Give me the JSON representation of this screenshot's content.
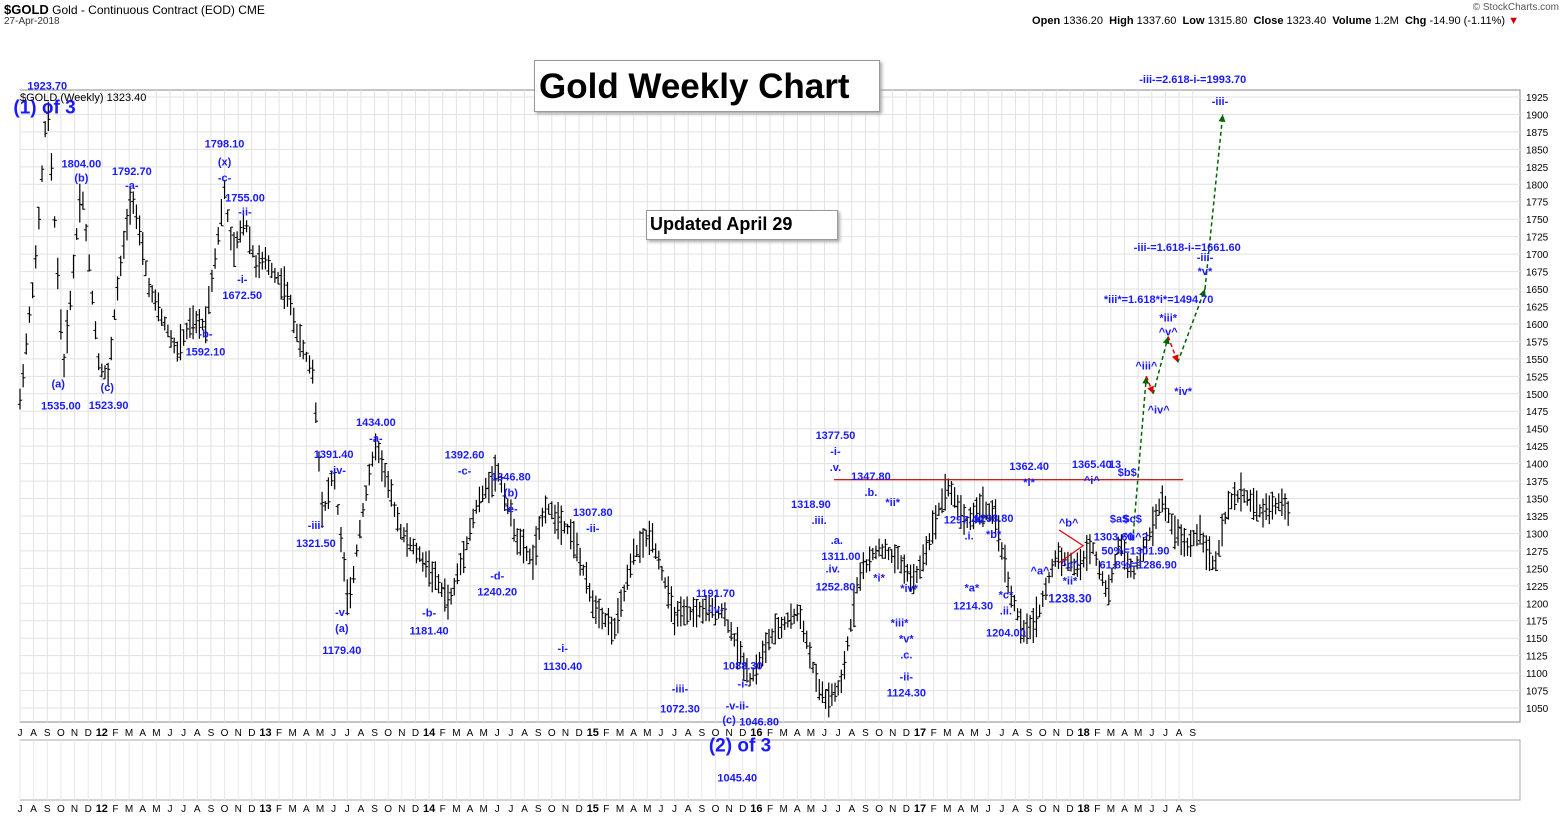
{
  "header": {
    "symbol": "$GOLD",
    "description": "Gold - Continuous Contract (EOD)",
    "exchange": "CME",
    "date": "27-Apr-2018",
    "brand": "© StockCharts.com",
    "open_label": "Open",
    "open": "1336.20",
    "high_label": "High",
    "high": "1337.60",
    "low_label": "Low",
    "low": "1315.80",
    "close_label": "Close",
    "close": "1323.40",
    "volume_label": "Volume",
    "volume": "1.2M",
    "chg_label": "Chg",
    "chg": "-14.90 (-1.11%)",
    "chg_arrow": "▼"
  },
  "title": "Gold Weekly Chart",
  "updated": "Updated April 29",
  "legend": "$GOLD (Weekly) 1323.40",
  "chart_data": {
    "type": "ohlc-weekly",
    "ylim": [
      1030,
      1935
    ],
    "y_ticks": [
      1050,
      1075,
      1100,
      1125,
      1150,
      1175,
      1200,
      1225,
      1250,
      1275,
      1300,
      1325,
      1350,
      1375,
      1400,
      1425,
      1450,
      1475,
      1500,
      1525,
      1550,
      1575,
      1600,
      1625,
      1650,
      1675,
      1700,
      1725,
      1750,
      1775,
      1800,
      1825,
      1850,
      1875,
      1900,
      1925
    ],
    "x_start": "2011-07",
    "x_months": 110,
    "month_labels": [
      "J",
      "A",
      "S",
      "O",
      "N",
      "D",
      "12",
      "F",
      "M",
      "A",
      "M",
      "J",
      "J",
      "A",
      "S",
      "O",
      "N",
      "D",
      "13",
      "F",
      "M",
      "A",
      "M",
      "J",
      "J",
      "A",
      "S",
      "O",
      "N",
      "D",
      "14",
      "F",
      "M",
      "A",
      "M",
      "J",
      "J",
      "A",
      "S",
      "O",
      "N",
      "D",
      "15",
      "F",
      "M",
      "A",
      "M",
      "J",
      "J",
      "A",
      "S",
      "O",
      "N",
      "D",
      "16",
      "F",
      "M",
      "A",
      "M",
      "J",
      "J",
      "A",
      "S",
      "O",
      "N",
      "D",
      "17",
      "F",
      "M",
      "A",
      "M",
      "J",
      "J",
      "A",
      "S",
      "O",
      "N",
      "D",
      "18",
      "F",
      "M",
      "A",
      "M",
      "J",
      "J",
      "A",
      "S"
    ],
    "anchors": [
      [
        0,
        1490
      ],
      [
        1.2,
        1700
      ],
      [
        2.0,
        1920
      ],
      [
        3.2,
        1535
      ],
      [
        4.5,
        1800
      ],
      [
        5.8,
        1540
      ],
      [
        6.5,
        1525
      ],
      [
        7.0,
        1630
      ],
      [
        8.2,
        1790
      ],
      [
        9.5,
        1650
      ],
      [
        11.5,
        1560
      ],
      [
        12.5,
        1600
      ],
      [
        13.6,
        1600
      ],
      [
        15.0,
        1790
      ],
      [
        15.6,
        1700
      ],
      [
        16.5,
        1750
      ],
      [
        17.3,
        1685
      ],
      [
        18.0,
        1690
      ],
      [
        19.5,
        1650
      ],
      [
        20.5,
        1575
      ],
      [
        21.5,
        1530
      ],
      [
        22.2,
        1325
      ],
      [
        23.0,
        1390
      ],
      [
        24.1,
        1190
      ],
      [
        25.0,
        1320
      ],
      [
        26.1,
        1430
      ],
      [
        28.0,
        1300
      ],
      [
        30.0,
        1250
      ],
      [
        31.5,
        1200
      ],
      [
        33.5,
        1340
      ],
      [
        35.0,
        1392
      ],
      [
        36.5,
        1290
      ],
      [
        37.6,
        1260
      ],
      [
        38.5,
        1340
      ],
      [
        40.5,
        1300
      ],
      [
        42.0,
        1200
      ],
      [
        43.6,
        1160
      ],
      [
        45.0,
        1270
      ],
      [
        46.3,
        1300
      ],
      [
        48.0,
        1180
      ],
      [
        50.0,
        1190
      ],
      [
        51.5,
        1190
      ],
      [
        53.6,
        1090
      ],
      [
        55.0,
        1150
      ],
      [
        56.5,
        1180
      ],
      [
        57.2,
        1185
      ],
      [
        58.5,
        1080
      ],
      [
        59.2,
        1060
      ],
      [
        60.2,
        1080
      ],
      [
        61.5,
        1240
      ],
      [
        63.0,
        1280
      ],
      [
        64.5,
        1260
      ],
      [
        65.6,
        1230
      ],
      [
        66.6,
        1285
      ],
      [
        67.3,
        1330
      ],
      [
        68.0,
        1370
      ],
      [
        69.4,
        1315
      ],
      [
        70.5,
        1340
      ],
      [
        71.6,
        1320
      ],
      [
        72.5,
        1225
      ],
      [
        73.6,
        1155
      ],
      [
        74.6,
        1180
      ],
      [
        76.0,
        1270
      ],
      [
        77.6,
        1250
      ],
      [
        78.6,
        1285
      ],
      [
        79.8,
        1210
      ],
      [
        80.6,
        1290
      ],
      [
        81.6,
        1240
      ],
      [
        83.0,
        1305
      ],
      [
        83.7,
        1350
      ],
      [
        84.5,
        1310
      ],
      [
        85.6,
        1280
      ],
      [
        86.5,
        1305
      ],
      [
        87.6,
        1250
      ],
      [
        88.6,
        1340
      ],
      [
        89.6,
        1360
      ],
      [
        91.0,
        1330
      ],
      [
        92.4,
        1345
      ],
      [
        93.2,
        1323
      ]
    ],
    "annotations": [
      {
        "text": "1923.70",
        "x": 2.0,
        "y": 1930,
        "dy": -4,
        "bold": true
      },
      {
        "text": "(1) of 3",
        "x": 1.8,
        "y": 1930,
        "dy": 20,
        "size": 19
      },
      {
        "text": "1804.00",
        "x": 4.5,
        "y": 1804,
        "dy": -14
      },
      {
        "text": "(b)",
        "x": 4.5,
        "y": 1804,
        "dy": 0
      },
      {
        "text": "(a)",
        "x": 2.8,
        "y": 1535,
        "dy": 18
      },
      {
        "text": "1535.00",
        "x": 3.0,
        "y": 1535,
        "dy": 40
      },
      {
        "text": "(c)",
        "x": 6.4,
        "y": 1524,
        "dy": 14
      },
      {
        "text": "1523.90",
        "x": 6.5,
        "y": 1524,
        "dy": 32
      },
      {
        "text": "1792.70",
        "x": 8.2,
        "y": 1793,
        "dy": -14
      },
      {
        "text": "-a-",
        "x": 8.2,
        "y": 1793,
        "dy": 0
      },
      {
        "text": "1798.10",
        "x": 15.0,
        "y": 1798,
        "dy": -38
      },
      {
        "text": "(x)",
        "x": 15.0,
        "y": 1798,
        "dy": -20
      },
      {
        "text": "-c-",
        "x": 15.0,
        "y": 1798,
        "dy": -4
      },
      {
        "text": "1755.00",
        "x": 16.5,
        "y": 1755,
        "dy": -14
      },
      {
        "text": "-ii-",
        "x": 16.5,
        "y": 1755,
        "dy": 0
      },
      {
        "text": "-b-",
        "x": 13.6,
        "y": 1592,
        "dy": 8
      },
      {
        "text": "1592.10",
        "x": 13.6,
        "y": 1592,
        "dy": 26
      },
      {
        "text": "-i-",
        "x": 16.3,
        "y": 1673,
        "dy": 10
      },
      {
        "text": "1672.50",
        "x": 16.3,
        "y": 1673,
        "dy": 26
      },
      {
        "text": "1391.40",
        "x": 23.0,
        "y": 1391,
        "dy": -12
      },
      {
        "text": "-iv-",
        "x": 23.3,
        "y": 1391,
        "dy": 4
      },
      {
        "text": "-iii-",
        "x": 21.7,
        "y": 1321,
        "dy": 10
      },
      {
        "text": "1321.50",
        "x": 21.7,
        "y": 1321,
        "dy": 28
      },
      {
        "text": "1434.00",
        "x": 26.1,
        "y": 1434,
        "dy": -14
      },
      {
        "text": "-a-",
        "x": 26.1,
        "y": 1434,
        "dy": 2
      },
      {
        "text": "-v-",
        "x": 23.6,
        "y": 1179,
        "dy": -2
      },
      {
        "text": "(a)",
        "x": 23.6,
        "y": 1179,
        "dy": 14
      },
      {
        "text": "1179.40",
        "x": 23.6,
        "y": 1179,
        "dy": 36
      },
      {
        "text": "1392.60",
        "x": 32.6,
        "y": 1393,
        "dy": -10
      },
      {
        "text": "-c-",
        "x": 32.6,
        "y": 1393,
        "dy": 6
      },
      {
        "text": "1346.80",
        "x": 36.0,
        "y": 1347,
        "dy": -20
      },
      {
        "text": "(b)",
        "x": 36.0,
        "y": 1347,
        "dy": -4
      },
      {
        "text": "-e-",
        "x": 36.0,
        "y": 1347,
        "dy": 12
      },
      {
        "text": "-d-",
        "x": 35.0,
        "y": 1240,
        "dy": 4
      },
      {
        "text": "1240.20",
        "x": 35.0,
        "y": 1240,
        "dy": 20
      },
      {
        "text": "-b-",
        "x": 30.0,
        "y": 1181,
        "dy": 0
      },
      {
        "text": "1181.40",
        "x": 30.0,
        "y": 1181,
        "dy": 18
      },
      {
        "text": "1307.80",
        "x": 42.0,
        "y": 1308,
        "dy": -12
      },
      {
        "text": "-ii-",
        "x": 42.0,
        "y": 1308,
        "dy": 4
      },
      {
        "text": "-i-",
        "x": 39.8,
        "y": 1130,
        "dy": 0
      },
      {
        "text": "1130.40",
        "x": 39.8,
        "y": 1130,
        "dy": 18
      },
      {
        "text": "1191.70",
        "x": 51.0,
        "y": 1192,
        "dy": -12
      },
      {
        "text": "-iv-",
        "x": 51.0,
        "y": 1192,
        "dy": 4
      },
      {
        "text": "-iii-",
        "x": 48.4,
        "y": 1072,
        "dy": 0
      },
      {
        "text": "1072.30",
        "x": 48.4,
        "y": 1072,
        "dy": 20
      },
      {
        "text": "1088.30",
        "x": 53.0,
        "y": 1088,
        "dy": -12
      },
      {
        "text": "-i-",
        "x": 53.0,
        "y": 1088,
        "dy": 6
      },
      {
        "text": "-v-ii-",
        "x": 52.6,
        "y": 1048,
        "dy": 0
      },
      {
        "text": "(c)",
        "x": 52.0,
        "y": 1048,
        "dy": 14
      },
      {
        "text": "1046.80",
        "x": 54.2,
        "y": 1048,
        "dy": 16
      },
      {
        "text": "(2) of 3",
        "x": 52.8,
        "y": 1048,
        "dy": 42,
        "size": 19
      },
      {
        "text": "1045.40",
        "x": 52.6,
        "y": 1048,
        "dy": 72
      },
      {
        "text": "1377.50",
        "x": 59.8,
        "y": 1378,
        "dy": -40
      },
      {
        "text": "-i-",
        "x": 59.8,
        "y": 1378,
        "dy": -24
      },
      {
        "text": ".v.",
        "x": 59.8,
        "y": 1378,
        "dy": -8
      },
      {
        "text": "1318.90",
        "x": 58.0,
        "y": 1319,
        "dy": -12
      },
      {
        "text": ".iii.",
        "x": 58.6,
        "y": 1319,
        "dy": 4
      },
      {
        "text": "1347.80",
        "x": 62.4,
        "y": 1348,
        "dy": -20
      },
      {
        "text": ".b.",
        "x": 62.4,
        "y": 1348,
        "dy": -4
      },
      {
        "text": "*ii*",
        "x": 64.0,
        "y": 1348,
        "dy": 6
      },
      {
        "text": ".a.",
        "x": 59.9,
        "y": 1311,
        "dy": 18
      },
      {
        "text": "1311.00",
        "x": 60.2,
        "y": 1311,
        "dy": 34
      },
      {
        "text": ".iv.",
        "x": 59.6,
        "y": 1253,
        "dy": 6
      },
      {
        "text": "1252.80",
        "x": 59.8,
        "y": 1253,
        "dy": 24
      },
      {
        "text": "*i*",
        "x": 63.0,
        "y": 1240,
        "dy": 6
      },
      {
        "text": "*iv*",
        "x": 65.2,
        "y": 1225,
        "dy": 6
      },
      {
        "text": "*iii*",
        "x": 64.5,
        "y": 1175,
        "dy": 6
      },
      {
        "text": "*v*",
        "x": 65.0,
        "y": 1124,
        "dy": -14
      },
      {
        "text": ".c.",
        "x": 65.0,
        "y": 1124,
        "dy": 2
      },
      {
        "text": "-ii-",
        "x": 65.0,
        "y": 1124,
        "dy": 24
      },
      {
        "text": "1124.30",
        "x": 65.0,
        "y": 1124,
        "dy": 40
      },
      {
        "text": "1297.40",
        "x": 69.2,
        "y": 1297,
        "dy": -12
      },
      {
        "text": ".i.",
        "x": 69.6,
        "y": 1297,
        "dy": 4
      },
      {
        "text": "1298.80",
        "x": 71.4,
        "y": 1299,
        "dy": -12
      },
      {
        "text": "*b*",
        "x": 71.4,
        "y": 1299,
        "dy": 4
      },
      {
        "text": "*a*",
        "x": 69.8,
        "y": 1214,
        "dy": -2
      },
      {
        "text": "1214.30",
        "x": 69.9,
        "y": 1214,
        "dy": 16
      },
      {
        "text": "*c*",
        "x": 72.3,
        "y": 1204,
        "dy": -2
      },
      {
        "text": ".ii.",
        "x": 72.3,
        "y": 1204,
        "dy": 14
      },
      {
        "text": "1204.00",
        "x": 72.3,
        "y": 1204,
        "dy": 36
      },
      {
        "text": "1362.40",
        "x": 74.0,
        "y": 1362,
        "dy": -20
      },
      {
        "text": "*i*",
        "x": 74.0,
        "y": 1362,
        "dy": -4
      },
      {
        "text": "^a^",
        "x": 74.8,
        "y": 1250,
        "dy": 6
      },
      {
        "text": "^b^",
        "x": 76.9,
        "y": 1310,
        "dy": 0
      },
      {
        "text": "^c^",
        "x": 77.0,
        "y": 1238,
        "dy": -8
      },
      {
        "text": "*ii*",
        "x": 77.0,
        "y": 1238,
        "dy": 8
      },
      {
        "text": "1238.30",
        "x": 77.0,
        "y": 1238,
        "dy": 26,
        "size": 12
      },
      {
        "text": "1365.40",
        "x": 78.6,
        "y": 1365,
        "dy": -20
      },
      {
        "text": "^i^",
        "x": 78.6,
        "y": 1365,
        "dy": -4
      },
      {
        "text": "13",
        "x": 80.3,
        "y": 1394,
        "dy": 0
      },
      {
        "text": "$b$",
        "x": 81.2,
        "y": 1382,
        "dy": 0
      },
      {
        "text": "$a$",
        "x": 80.6,
        "y": 1304,
        "dy": -8
      },
      {
        "text": "1303.60",
        "x": 80.2,
        "y": 1304,
        "dy": 10
      },
      {
        "text": "$c$",
        "x": 81.6,
        "y": 1304,
        "dy": -8
      },
      {
        "text": "^ii^?",
        "x": 81.8,
        "y": 1304,
        "dy": 10
      },
      {
        "text": "50%=1301.90",
        "x": 81.8,
        "y": 1270,
        "dy": 0
      },
      {
        "text": "61.8%=1286.90",
        "x": 82.0,
        "y": 1270,
        "dy": 14
      },
      {
        "text": "^iii^",
        "x": 82.6,
        "y": 1535,
        "dy": 0
      },
      {
        "text": "^iv^",
        "x": 83.5,
        "y": 1480,
        "dy": 6
      },
      {
        "text": "*iii*=1.618*i*=1494.70",
        "x": 83.5,
        "y": 1630,
        "dy": 0
      },
      {
        "text": "*iii*",
        "x": 84.2,
        "y": 1612,
        "dy": 6
      },
      {
        "text": "^v^",
        "x": 84.2,
        "y": 1612,
        "dy": 20
      },
      {
        "text": "*iv*",
        "x": 85.3,
        "y": 1510,
        "dy": 8
      },
      {
        "text": "-iii-=1.618-i-=1661.60",
        "x": 85.6,
        "y": 1710,
        "dy": 4
      },
      {
        "text": "-iii-",
        "x": 86.9,
        "y": 1690,
        "dy": 0
      },
      {
        "text": "*v*",
        "x": 86.9,
        "y": 1690,
        "dy": 14
      },
      {
        "text": "-iii-=2.618-i-=1993.70",
        "x": 86.0,
        "y": 1925,
        "dy": -14
      },
      {
        "text": "-iii-",
        "x": 88.0,
        "y": 1925,
        "dy": 8
      }
    ],
    "hlines": [
      {
        "x0": 59.7,
        "x1": 85.3,
        "y": 1377,
        "color": "#c00000"
      }
    ],
    "triangle": [
      [
        76.2,
        1305
      ],
      [
        78.0,
        1282
      ],
      [
        76.2,
        1258
      ],
      [
        78.0,
        1283
      ]
    ],
    "projection": [
      {
        "from": [
          81.6,
          1290
        ],
        "to": [
          82.6,
          1525
        ],
        "color": "#006400"
      },
      {
        "from": [
          82.6,
          1525
        ],
        "to": [
          83.1,
          1500
        ],
        "color": "#e00000"
      },
      {
        "from": [
          83.1,
          1500
        ],
        "to": [
          84.2,
          1582
        ],
        "color": "#006400"
      },
      {
        "from": [
          84.2,
          1582
        ],
        "to": [
          84.9,
          1545
        ],
        "color": "#e00000"
      },
      {
        "from": [
          84.9,
          1545
        ],
        "to": [
          86.9,
          1650
        ],
        "color": "#006400"
      },
      {
        "from": [
          86.9,
          1650
        ],
        "to": [
          88.2,
          1900
        ],
        "color": "#006400"
      }
    ]
  }
}
